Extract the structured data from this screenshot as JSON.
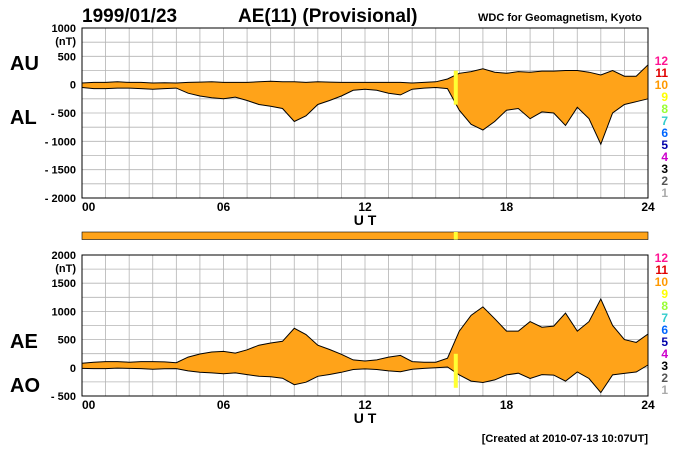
{
  "header": {
    "date": "1999/01/23",
    "title": "AE(11) (Provisional)",
    "source": "WDC for Geomagnetism, Kyoto"
  },
  "footer": {
    "created": "[Created at 2010-07-13 10:07UT]"
  },
  "station_legend": {
    "labels": [
      "12",
      "11",
      "10",
      "9",
      "8",
      "7",
      "6",
      "5",
      "4",
      "3",
      "2",
      "1"
    ],
    "colors": [
      "#ff1493",
      "#e00000",
      "#ff9900",
      "#ffff00",
      "#99ff33",
      "#33cccc",
      "#0066ff",
      "#0000aa",
      "#cc00cc",
      "#000000",
      "#555555",
      "#aaaaaa"
    ]
  },
  "colors": {
    "fill": "#ffa319",
    "line": "#000000",
    "grid": "#b4b4b4",
    "highlight": "#ffff33",
    "bar": "#ffa319"
  },
  "chart_data": [
    {
      "type": "area",
      "xlabel": "U T",
      "ylabel_unit": "(nT)",
      "upper_label": "AU",
      "lower_label": "AL",
      "xlim": [
        0,
        24
      ],
      "ylim": [
        -2000,
        1000
      ],
      "xticks": [
        0,
        6,
        12,
        18,
        24
      ],
      "xtick_labels": [
        "00",
        "06",
        "12",
        "18",
        "24"
      ],
      "yticks": [
        1000,
        500,
        0,
        -500,
        -1000,
        -1500,
        -2000
      ],
      "ytick_labels": [
        "1000",
        "500",
        "0",
        "- 500",
        "- 1000",
        "- 1500",
        "- 2000"
      ],
      "grid": true,
      "highlight_hour": 15.85,
      "series": [
        {
          "name": "AU",
          "x": [
            0,
            0.5,
            1,
            1.5,
            2,
            2.5,
            3,
            3.5,
            4,
            4.5,
            5,
            5.5,
            6,
            6.5,
            7,
            7.5,
            8,
            8.5,
            9,
            9.5,
            10,
            10.5,
            11,
            11.5,
            12,
            12.5,
            13,
            13.5,
            14,
            14.5,
            15,
            15.5,
            16,
            16.5,
            17,
            17.5,
            18,
            18.5,
            19,
            19.5,
            20,
            20.5,
            21,
            21.5,
            22,
            22.5,
            23,
            23.5,
            24
          ],
          "values": [
            30,
            40,
            40,
            50,
            40,
            40,
            30,
            35,
            30,
            40,
            45,
            50,
            40,
            40,
            40,
            50,
            60,
            50,
            50,
            40,
            50,
            45,
            40,
            40,
            40,
            40,
            40,
            40,
            30,
            40,
            50,
            100,
            200,
            230,
            280,
            220,
            200,
            230,
            220,
            240,
            240,
            250,
            250,
            220,
            170,
            250,
            150,
            150,
            350
          ]
        },
        {
          "name": "AL",
          "x": [
            0,
            0.5,
            1,
            1.5,
            2,
            2.5,
            3,
            3.5,
            4,
            4.5,
            5,
            5.5,
            6,
            6.5,
            7,
            7.5,
            8,
            8.5,
            9,
            9.5,
            10,
            10.5,
            11,
            11.5,
            12,
            12.5,
            13,
            13.5,
            14,
            14.5,
            15,
            15.5,
            16,
            16.5,
            17,
            17.5,
            18,
            18.5,
            19,
            19.5,
            20,
            20.5,
            21,
            21.5,
            22,
            22.5,
            23,
            23.5,
            24
          ],
          "values": [
            -50,
            -70,
            -70,
            -60,
            -60,
            -70,
            -80,
            -70,
            -60,
            -150,
            -200,
            -230,
            -250,
            -220,
            -280,
            -350,
            -380,
            -420,
            -650,
            -550,
            -350,
            -280,
            -200,
            -100,
            -80,
            -100,
            -150,
            -180,
            -80,
            -60,
            -50,
            -70,
            -450,
            -700,
            -800,
            -650,
            -450,
            -420,
            -600,
            -480,
            -500,
            -720,
            -400,
            -600,
            -1050,
            -500,
            -350,
            -300,
            -250
          ]
        }
      ]
    },
    {
      "type": "area",
      "xlabel": "U T",
      "ylabel_unit": "(nT)",
      "upper_label": "AE",
      "lower_label": "AO",
      "xlim": [
        0,
        24
      ],
      "ylim": [
        -500,
        2000
      ],
      "xticks": [
        0,
        6,
        12,
        18,
        24
      ],
      "xtick_labels": [
        "00",
        "06",
        "12",
        "18",
        "24"
      ],
      "yticks": [
        2000,
        1500,
        1000,
        500,
        0,
        -500
      ],
      "ytick_labels": [
        "2000",
        "1500",
        "1000",
        "500",
        "0",
        "- 500"
      ],
      "grid": true,
      "highlight_hour": 15.85,
      "series": [
        {
          "name": "AE",
          "x": [
            0,
            0.5,
            1,
            1.5,
            2,
            2.5,
            3,
            3.5,
            4,
            4.5,
            5,
            5.5,
            6,
            6.5,
            7,
            7.5,
            8,
            8.5,
            9,
            9.5,
            10,
            10.5,
            11,
            11.5,
            12,
            12.5,
            13,
            13.5,
            14,
            14.5,
            15,
            15.5,
            16,
            16.5,
            17,
            17.5,
            18,
            18.5,
            19,
            19.5,
            20,
            20.5,
            21,
            21.5,
            22,
            22.5,
            23,
            23.5,
            24
          ],
          "values": [
            80,
            100,
            110,
            110,
            100,
            110,
            110,
            105,
            90,
            190,
            245,
            280,
            290,
            260,
            320,
            400,
            440,
            470,
            700,
            590,
            400,
            325,
            240,
            140,
            120,
            140,
            190,
            220,
            110,
            100,
            100,
            170,
            650,
            930,
            1080,
            870,
            650,
            650,
            820,
            720,
            740,
            970,
            650,
            820,
            1220,
            750,
            500,
            450,
            600
          ]
        },
        {
          "name": "AO",
          "x": [
            0,
            0.5,
            1,
            1.5,
            2,
            2.5,
            3,
            3.5,
            4,
            4.5,
            5,
            5.5,
            6,
            6.5,
            7,
            7.5,
            8,
            8.5,
            9,
            9.5,
            10,
            10.5,
            11,
            11.5,
            12,
            12.5,
            13,
            13.5,
            14,
            14.5,
            15,
            15.5,
            16,
            16.5,
            17,
            17.5,
            18,
            18.5,
            19,
            19.5,
            20,
            20.5,
            21,
            21.5,
            22,
            22.5,
            23,
            23.5,
            24
          ],
          "values": [
            -10,
            -15,
            -15,
            -5,
            -10,
            -15,
            -25,
            -18,
            -15,
            -55,
            -78,
            -90,
            -105,
            -90,
            -120,
            -150,
            -160,
            -185,
            -300,
            -255,
            -150,
            -118,
            -80,
            -30,
            -20,
            -30,
            -55,
            -70,
            -25,
            -10,
            0,
            15,
            -125,
            -235,
            -260,
            -215,
            -125,
            -95,
            -190,
            -120,
            -130,
            -235,
            -75,
            -190,
            -440,
            -125,
            -100,
            -75,
            50
          ]
        }
      ]
    }
  ]
}
